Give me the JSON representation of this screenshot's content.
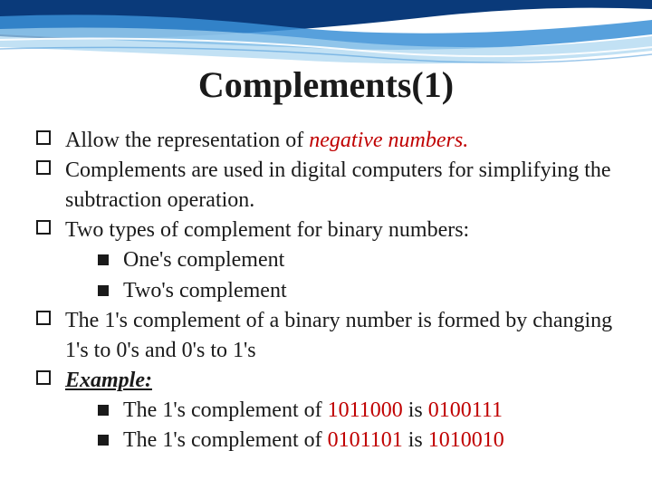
{
  "slide": {
    "title": "Complements(1)",
    "title_color": "#1a1a1a",
    "title_fontsize": 40,
    "body_fontsize": 24,
    "body_color": "#1a1a1a",
    "accent_color": "#c00000",
    "background_color": "#ffffff",
    "wave_colors": {
      "top_dark": "#0a3a7a",
      "mid_blue": "#3a8fd6",
      "light_blue": "#a8d4f0",
      "line": "#ffffff"
    },
    "bullets": [
      {
        "html": "Allow the representation of <span class=\"italic red\">negative numbers.</span>",
        "plain": "Allow the representation of negative numbers."
      },
      {
        "html": "Complements are used in digital computers for simplifying the subtraction operation.",
        "plain": "Complements are used in digital computers for simplifying the subtraction operation."
      },
      {
        "html": "Two types of complement for binary numbers:",
        "plain": "Two types of complement for binary numbers:",
        "sub": [
          {
            "html": "One's complement",
            "plain": "One's complement"
          },
          {
            "html": "Two's complement",
            "plain": "Two's complement"
          }
        ]
      },
      {
        "html": "The 1's complement of a binary number is formed by changing 1's to 0's and 0's to 1's",
        "plain": "The 1's complement of a binary number is formed by changing 1's to 0's and 0's to 1's"
      },
      {
        "html": "<span class=\"bold-italic underline\">Example:</span>",
        "plain": "Example:",
        "sub": [
          {
            "html": "The 1's complement of <span class=\"red\">1011000 </span>is <span class=\"red\">0100111</span>",
            "plain": "The 1's complement of 1011000 is 0100111"
          },
          {
            "html": "The 1's complement of <span class=\"red\">0101101 </span>is <span class=\"red\">1010010</span>",
            "plain": "The 1's complement of 0101101 is 1010010"
          }
        ]
      }
    ]
  }
}
